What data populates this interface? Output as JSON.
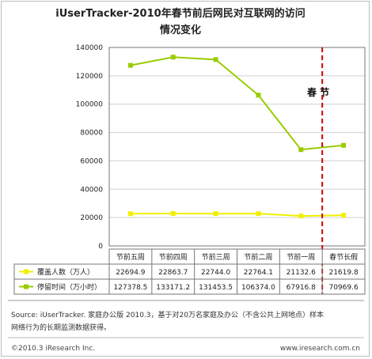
{
  "chart_data": {
    "type": "line",
    "title": [
      "iUserTracker-2010年春节前后网民对互联网的访问",
      "情况变化"
    ],
    "categories": [
      "节前五周",
      "节前四周",
      "节前三周",
      "节前二周",
      "节前一周",
      "春节长假"
    ],
    "ylim": [
      0,
      140000
    ],
    "yticks": [
      "0",
      "20000",
      "40000",
      "60000",
      "80000",
      "100000",
      "120000",
      "140000"
    ],
    "grid": true,
    "series": [
      {
        "name": "覆盖人数（万人）",
        "values": [
          22694.9,
          22863.7,
          22744.0,
          22764.1,
          21132.6,
          21619.8
        ],
        "labels": [
          "22694.9",
          "22863.7",
          "22744.0",
          "22764.1",
          "21132.6",
          "21619.8"
        ],
        "color": "#f0f000"
      },
      {
        "name": "停留时间（万小时）",
        "values": [
          127378.5,
          133171.2,
          131453.5,
          106374.0,
          67916.8,
          70969.6
        ],
        "labels": [
          "127378.5",
          "133171.2",
          "131453.5",
          "106374.0",
          "67916.8",
          "70969.6"
        ],
        "color": "#99cc00"
      }
    ],
    "annotation": "春 节",
    "marker_line_color": "#cc0000"
  },
  "footer": {
    "source_line1": "Source: iUserTracker. 家庭办公版 2010.3，基于对20万名家庭及办公（不含公共上网地点）样本",
    "source_line2": "网络行为的长期监测数据获得。",
    "copyright": "©2010.3 iResearch Inc.",
    "website": "www.iresearch.com.cn"
  }
}
